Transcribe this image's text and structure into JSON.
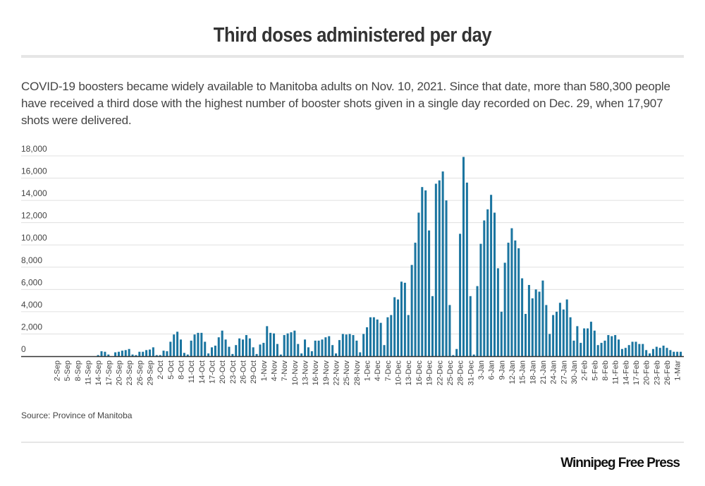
{
  "title": "Third doses administered per day",
  "description": "COVID-19 boosters became widely available to Manitoba adults on Nov. 10, 2021. Since that date, more than 580,300 people have received a third dose with the highest number of booster shots given in a single day recorded on Dec. 29, when 17,907 shots were delivered.",
  "source": "Source: Province of Manitoba",
  "brand": "Winnipeg Free Press",
  "colors": {
    "bar": "#1b75a0",
    "grid": "#e0e0e0",
    "axis": "#333333"
  },
  "chart_data": {
    "type": "bar",
    "title": "Third doses administered per day",
    "xlabel": "",
    "ylabel": "",
    "ylim": [
      0,
      18000
    ],
    "yticks": [
      0,
      2000,
      4000,
      6000,
      8000,
      10000,
      12000,
      14000,
      16000,
      18000
    ],
    "ytick_labels": [
      "0",
      "2,000",
      "4,000",
      "6,000",
      "8,000",
      "10,000",
      "12,000",
      "14,000",
      "16,000",
      "18,000"
    ],
    "grid": true,
    "legend": "none",
    "start_date": "2-Sep",
    "label_every_n_days": 3,
    "xtick_labels": [
      "2-Sep",
      "5-Sep",
      "8-Sep",
      "11-Sep",
      "14-Sep",
      "17-Sep",
      "20-Sep",
      "23-Sep",
      "26-Sep",
      "29-Sep",
      "2-Oct",
      "5-Oct",
      "8-Oct",
      "11-Oct",
      "14-Oct",
      "17-Oct",
      "20-Oct",
      "23-Oct",
      "26-Oct",
      "29-Oct",
      "1-Nov",
      "4-Nov",
      "7-Nov",
      "10-Nov",
      "13-Nov",
      "16-Nov",
      "19-Nov",
      "22-Nov",
      "25-Nov",
      "28-Nov",
      "1-Dec",
      "4-Dec",
      "7-Dec",
      "10-Dec",
      "13-Dec",
      "16-Dec",
      "19-Dec",
      "22-Dec",
      "25-Dec",
      "28-Dec",
      "31-Dec",
      "3-Jan",
      "6-Jan",
      "9-Jan",
      "12-Jan",
      "15-Jan",
      "18-Jan",
      "21-Jan",
      "24-Jan",
      "27-Jan",
      "30-Jan",
      "2-Feb",
      "5-Feb",
      "8-Feb",
      "11-Feb",
      "14-Feb",
      "17-Feb",
      "20-Feb",
      "23-Feb",
      "26-Feb",
      "1-Mar"
    ],
    "values": [
      0,
      0,
      0,
      0,
      0,
      0,
      0,
      0,
      0,
      0,
      0,
      0,
      100,
      450,
      400,
      150,
      0,
      350,
      400,
      500,
      550,
      650,
      150,
      100,
      400,
      400,
      550,
      600,
      800,
      100,
      100,
      500,
      450,
      1300,
      1950,
      2200,
      1500,
      300,
      150,
      1400,
      1950,
      2100,
      2100,
      1300,
      250,
      800,
      950,
      1700,
      2300,
      1500,
      850,
      200,
      1000,
      1600,
      1500,
      1900,
      1600,
      800,
      200,
      1050,
      1200,
      2700,
      2100,
      2050,
      1100,
      150,
      1900,
      2050,
      2150,
      2300,
      1100,
      250,
      1500,
      800,
      450,
      1400,
      1400,
      1500,
      1700,
      1800,
      1000,
      250,
      1450,
      2000,
      1950,
      2000,
      1900,
      1400,
      350,
      2000,
      2600,
      3500,
      3500,
      3300,
      3000,
      1000,
      3500,
      3700,
      5300,
      5100,
      6700,
      6600,
      3700,
      8200,
      10200,
      12900,
      15200,
      14900,
      11300,
      5400,
      15500,
      15800,
      16600,
      14000,
      4600,
      100,
      650,
      11000,
      17907,
      15600,
      5400,
      150,
      6300,
      10100,
      12200,
      13200,
      14500,
      12900,
      7900,
      4000,
      8400,
      10200,
      11500,
      10400,
      9700,
      7000,
      3800,
      6400,
      5200,
      6000,
      5800,
      6800,
      4600,
      2000,
      3700,
      4000,
      4800,
      4200,
      5100,
      3500,
      1400,
      2700,
      1200,
      2500,
      2500,
      3100,
      2300,
      1000,
      1200,
      1400,
      1900,
      1800,
      1900,
      1500,
      650,
      750,
      1000,
      1300,
      1300,
      1100,
      1100,
      550,
      250,
      650,
      850,
      750,
      950,
      750,
      550,
      400,
      400,
      400
    ]
  }
}
